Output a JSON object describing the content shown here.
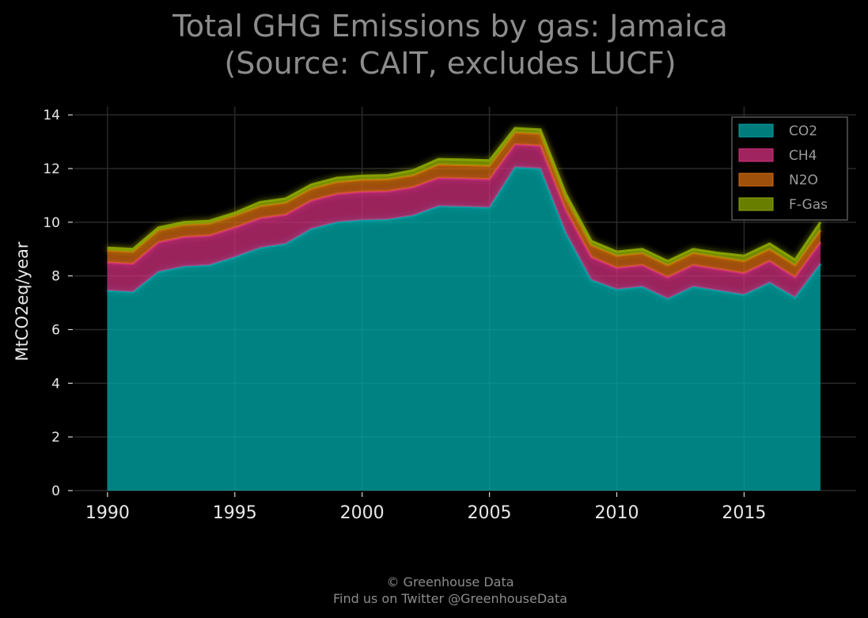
{
  "chart_data": {
    "type": "area",
    "stacked": true,
    "title": "Total GHG Emissions by gas: Jamaica",
    "subtitle": "(Source: CAIT, excludes LUCF)",
    "xlabel": "",
    "ylabel": "MtCO2eq/year",
    "x": [
      1990,
      1991,
      1992,
      1993,
      1994,
      1995,
      1996,
      1997,
      1998,
      1999,
      2000,
      2001,
      2002,
      2003,
      2004,
      2005,
      2006,
      2007,
      2008,
      2009,
      2010,
      2011,
      2012,
      2013,
      2014,
      2015,
      2016,
      2017,
      2018
    ],
    "xticks": [
      1990,
      1995,
      2000,
      2005,
      2010,
      2015
    ],
    "yticks": [
      0,
      2,
      4,
      6,
      8,
      10,
      12,
      14
    ],
    "xlim": [
      1988.7,
      2019.4
    ],
    "ylim": [
      0,
      14.3
    ],
    "grid": true,
    "legend_position": "top-right",
    "series": [
      {
        "name": "CO2",
        "color": "#00a6a6",
        "values": [
          7.45,
          7.4,
          8.15,
          8.35,
          8.4,
          8.7,
          9.05,
          9.2,
          9.75,
          10.0,
          10.08,
          10.1,
          10.25,
          10.6,
          10.58,
          10.55,
          12.05,
          12.0,
          9.6,
          7.85,
          7.5,
          7.6,
          7.15,
          7.6,
          7.45,
          7.3,
          7.75,
          7.2,
          8.45
        ]
      },
      {
        "name": "CH4",
        "color": "#d6307f",
        "values": [
          1.05,
          1.05,
          1.1,
          1.1,
          1.1,
          1.1,
          1.1,
          1.08,
          1.05,
          1.05,
          1.05,
          1.05,
          1.05,
          1.05,
          1.05,
          1.05,
          0.85,
          0.85,
          0.85,
          0.85,
          0.8,
          0.8,
          0.8,
          0.8,
          0.8,
          0.8,
          0.8,
          0.75,
          0.8
        ]
      },
      {
        "name": "N2O",
        "color": "#d46b0f",
        "values": [
          0.45,
          0.45,
          0.45,
          0.45,
          0.45,
          0.45,
          0.45,
          0.45,
          0.45,
          0.45,
          0.45,
          0.45,
          0.45,
          0.5,
          0.5,
          0.5,
          0.45,
          0.45,
          0.45,
          0.45,
          0.45,
          0.45,
          0.45,
          0.45,
          0.45,
          0.45,
          0.45,
          0.45,
          0.45
        ]
      },
      {
        "name": "F-Gas",
        "color": "#8aa800",
        "values": [
          0.1,
          0.1,
          0.1,
          0.1,
          0.1,
          0.1,
          0.15,
          0.15,
          0.15,
          0.15,
          0.15,
          0.15,
          0.18,
          0.2,
          0.2,
          0.2,
          0.15,
          0.15,
          0.15,
          0.15,
          0.15,
          0.15,
          0.15,
          0.15,
          0.15,
          0.2,
          0.2,
          0.2,
          0.3
        ]
      }
    ]
  },
  "footer": {
    "copyright": "© Greenhouse Data",
    "twitter": "Find us on Twitter @GreenhouseData"
  }
}
